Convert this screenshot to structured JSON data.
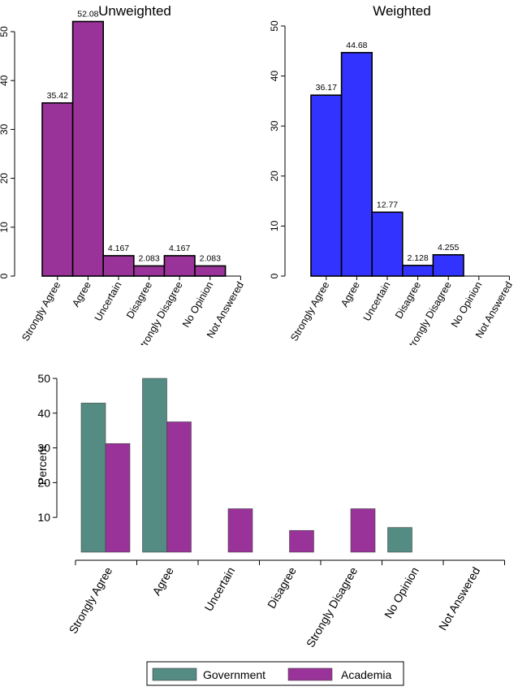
{
  "chart_data": [
    {
      "type": "bar",
      "title": "Unweighted",
      "categories": [
        "Strongly Agree",
        "Agree",
        "Uncertain",
        "Disagree",
        "Strongly Disagree",
        "No Opinion",
        "Not Answered"
      ],
      "values": [
        35.42,
        52.08,
        4.167,
        2.083,
        4.167,
        2.083,
        0
      ],
      "value_labels": [
        "35.42",
        "52.08",
        "4.167",
        "2.083",
        "4.167",
        "2.083",
        ""
      ],
      "ylim": [
        0,
        50
      ],
      "yticks": [
        "0",
        "10",
        "20",
        "30",
        "40",
        "50"
      ],
      "color": "#993399"
    },
    {
      "type": "bar",
      "title": "Weighted",
      "categories": [
        "Strongly Agree",
        "Agree",
        "Uncertain",
        "Disagree",
        "Strongly Disagree",
        "No Opinion",
        "Not Answered"
      ],
      "values": [
        36.17,
        44.68,
        12.77,
        2.128,
        4.255,
        0,
        0
      ],
      "value_labels": [
        "36.17",
        "44.68",
        "12.77",
        "2.128",
        "4.255",
        "",
        ""
      ],
      "ylim": [
        0,
        50
      ],
      "yticks": [
        "0",
        "10",
        "20",
        "30",
        "40",
        "50"
      ],
      "color": "#3333ff"
    },
    {
      "type": "bar",
      "ylabel": "Percent",
      "categories": [
        "Strongly Agree",
        "Agree",
        "Uncertain",
        "Disagree",
        "Strongly Disagree",
        "No Opinion",
        "Not Answered"
      ],
      "ylim": [
        0,
        50
      ],
      "yticks": [
        "10",
        "20",
        "30",
        "40",
        "50"
      ],
      "series": [
        {
          "name": "Government",
          "color": "#548b83",
          "values": [
            42.9,
            50.0,
            0,
            0,
            0,
            7.1,
            0
          ]
        },
        {
          "name": "Academia",
          "color": "#993399",
          "values": [
            31.25,
            37.5,
            12.5,
            6.25,
            12.5,
            0,
            0
          ]
        }
      ],
      "legend": "bottom"
    }
  ]
}
